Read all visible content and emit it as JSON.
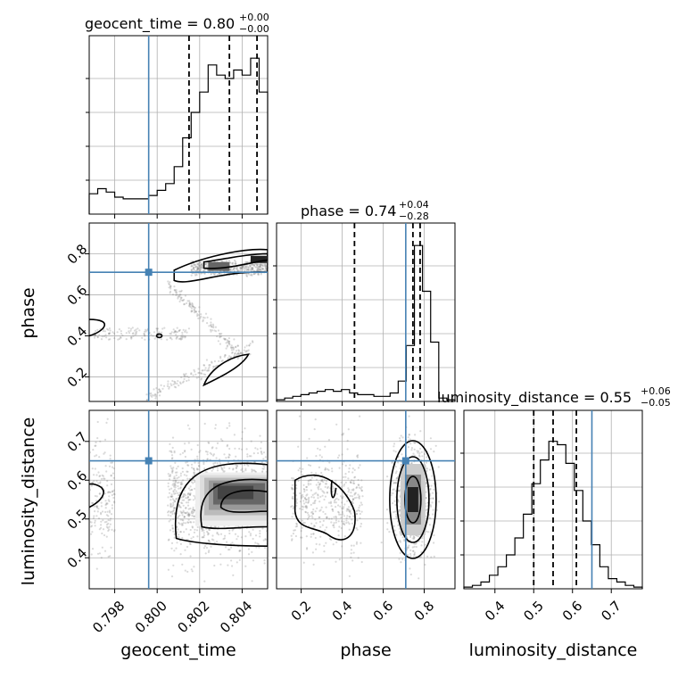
{
  "chart_data": {
    "type": "corner",
    "parameters": [
      "geocent_time",
      "phase",
      "luminosity_distance"
    ],
    "truths": {
      "geocent_time": 0.7996,
      "phase": 0.71,
      "luminosity_distance": 0.65
    },
    "titles": [
      {
        "name": "geocent_time",
        "median": "0.80",
        "plus": "+0.00",
        "minus": "−0.00"
      },
      {
        "name": "phase",
        "median": "0.74",
        "plus": "+0.04",
        "minus": "−0.28"
      },
      {
        "name": "luminosity_distance",
        "median": "0.55",
        "plus": "+0.06",
        "minus": "−0.05"
      }
    ],
    "ranges": {
      "geocent_time": [
        0.7968,
        0.8052
      ],
      "phase": [
        0.08,
        0.95
      ],
      "luminosity_distance": [
        0.32,
        0.78
      ]
    },
    "ticks": {
      "geocent_time": [
        "0.798",
        "0.800",
        "0.802",
        "0.804"
      ],
      "phase": [
        "0.2",
        "0.4",
        "0.6",
        "0.8"
      ],
      "luminosity_distance": [
        "0.4",
        "0.5",
        "0.6",
        "0.7"
      ]
    },
    "quantiles": {
      "geocent_time": [
        0.8015,
        0.8034,
        0.8047
      ],
      "phase": [
        0.46,
        0.745,
        0.78
      ],
      "luminosity_distance": [
        0.5,
        0.55,
        0.61
      ]
    },
    "histograms": {
      "geocent_time": [
        0.12,
        0.15,
        0.13,
        0.1,
        0.09,
        0.09,
        0.09,
        0.11,
        0.14,
        0.18,
        0.28,
        0.45,
        0.6,
        0.72,
        0.88,
        0.82,
        0.8,
        0.85,
        0.82,
        0.92,
        0.72
      ],
      "phase": [
        0.01,
        0.02,
        0.03,
        0.04,
        0.05,
        0.06,
        0.07,
        0.06,
        0.07,
        0.05,
        0.04,
        0.04,
        0.03,
        0.03,
        0.05,
        0.12,
        0.33,
        0.92,
        0.65,
        0.35,
        0.02,
        0.01
      ],
      "luminosity_distance": [
        0.01,
        0.02,
        0.04,
        0.08,
        0.13,
        0.2,
        0.3,
        0.44,
        0.62,
        0.76,
        0.87,
        0.85,
        0.74,
        0.58,
        0.4,
        0.26,
        0.13,
        0.06,
        0.04,
        0.02,
        0.01
      ]
    }
  }
}
